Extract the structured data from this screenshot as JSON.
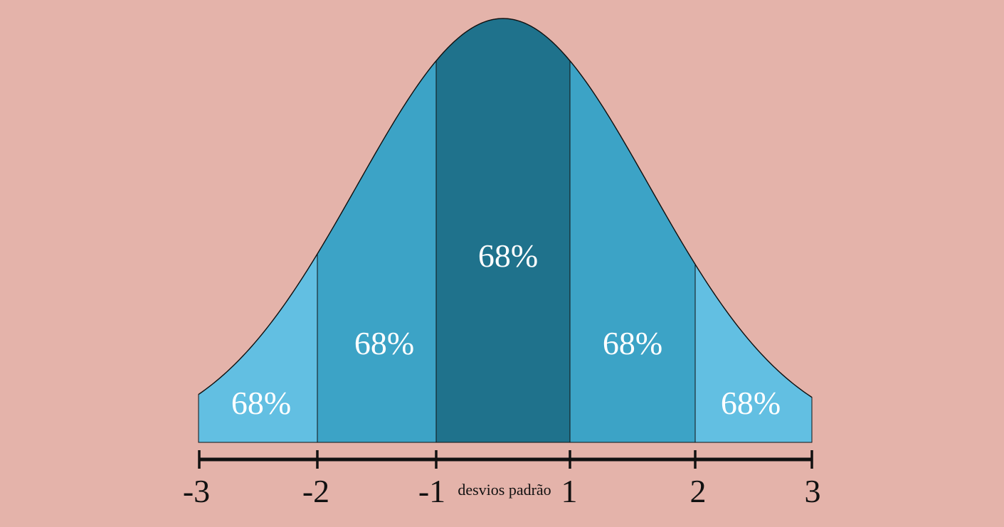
{
  "colors": {
    "background": "#E4B3AA",
    "center_band": "#1F728C",
    "inner_bands": "#3CA3C6",
    "outer_bands": "#62BFE2",
    "outline": "#111111",
    "label": "#FFFFFF"
  },
  "regions": [
    {
      "from": -3,
      "to": -2,
      "label": "68%",
      "tone": "outer"
    },
    {
      "from": -2,
      "to": -1,
      "label": "68%",
      "tone": "inner"
    },
    {
      "from": -1,
      "to": 1,
      "label": "68%",
      "tone": "center"
    },
    {
      "from": 1,
      "to": 2,
      "label": "68%",
      "tone": "inner"
    },
    {
      "from": 2,
      "to": 3,
      "label": "68%",
      "tone": "outer"
    }
  ],
  "axis": {
    "ticks": [
      "-3",
      "-2",
      "-1",
      "1",
      "2",
      "3"
    ],
    "title": "desvios padrão"
  }
}
